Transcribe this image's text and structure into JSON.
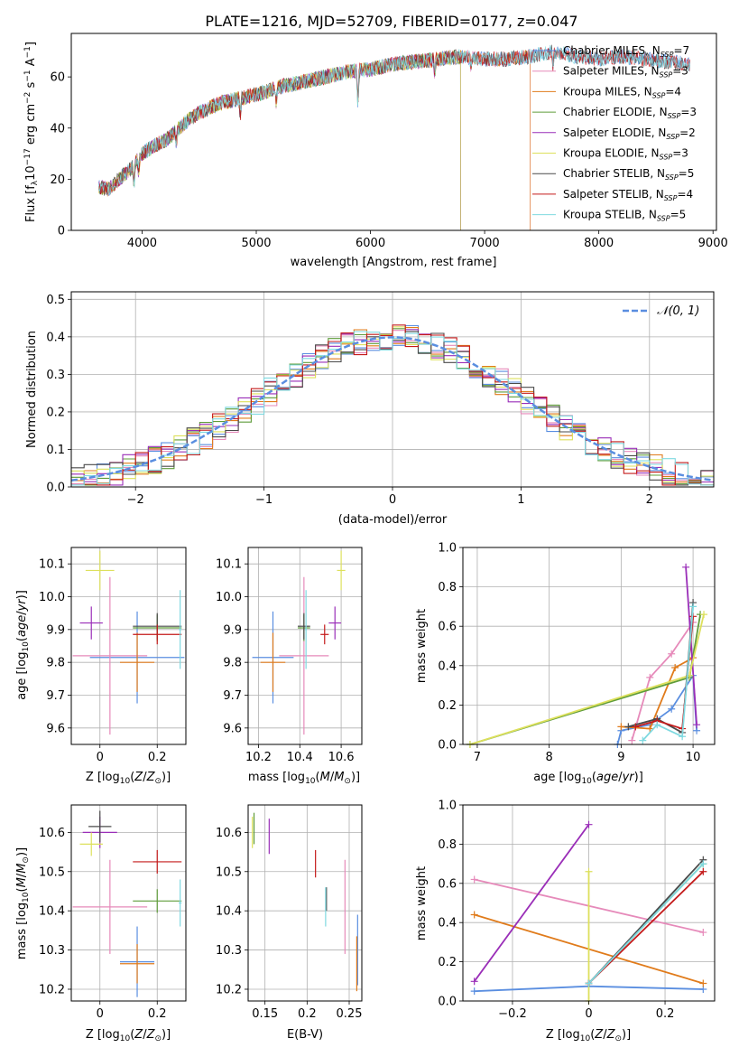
{
  "figure_title": "PLATE=1216, MJD=52709, FIBERID=0177, z=0.047",
  "series_colors": [
    "#5a8ee0",
    "#e68aba",
    "#e07b1b",
    "#5f9c3a",
    "#9a2eb8",
    "#dde05c",
    "#4a4a4a",
    "#c41a1a",
    "#7fd9e0"
  ],
  "chart_data": [
    {
      "type": "line",
      "title": "PLATE=1216, MJD=52709, FIBERID=0177, z=0.047",
      "xlabel": "wavelength [Angstrom, rest frame]",
      "ylabel": "Flux [fλ10⁻¹⁷ erg cm⁻² s⁻¹ A⁻¹]",
      "xlim": [
        3380,
        9030
      ],
      "ylim": [
        0,
        77
      ],
      "xticks": [
        4000,
        5000,
        6000,
        7000,
        8000,
        9000
      ],
      "yticks": [
        0,
        20,
        40,
        60
      ],
      "grid": false,
      "legend": "upper right",
      "legend_entries": [
        {
          "text": "Chabrier MILES, N",
          "sub": "SSP",
          "val": "=7"
        },
        {
          "text": "Salpeter MILES, N",
          "sub": "SSP",
          "val": "=3"
        },
        {
          "text": "Kroupa MILES, N",
          "sub": "SSP",
          "val": "=4"
        },
        {
          "text": "Chabrier ELODIE, N",
          "sub": "SSP",
          "val": "=3"
        },
        {
          "text": "Salpeter ELODIE, N",
          "sub": "SSP",
          "val": "=2"
        },
        {
          "text": "Kroupa ELODIE, N",
          "sub": "SSP",
          "val": "=3"
        },
        {
          "text": "Chabrier STELIB, N",
          "sub": "SSP",
          "val": "=5"
        },
        {
          "text": "Salpeter STELIB, N",
          "sub": "SSP",
          "val": "=4"
        },
        {
          "text": "Kroupa STELIB, N",
          "sub": "SSP",
          "val": "=5"
        }
      ],
      "continuum": [
        [
          3620,
          17
        ],
        [
          3700,
          16
        ],
        [
          3800,
          20
        ],
        [
          3900,
          24
        ],
        [
          4000,
          30
        ],
        [
          4100,
          33
        ],
        [
          4200,
          35
        ],
        [
          4300,
          39
        ],
        [
          4400,
          43
        ],
        [
          4500,
          46
        ],
        [
          4700,
          50
        ],
        [
          4900,
          52
        ],
        [
          5000,
          53
        ],
        [
          5200,
          56
        ],
        [
          5500,
          59
        ],
        [
          5800,
          62
        ],
        [
          6000,
          63
        ],
        [
          6200,
          65
        ],
        [
          6400,
          66
        ],
        [
          6600,
          67
        ],
        [
          6800,
          68
        ],
        [
          7000,
          67
        ],
        [
          7200,
          67
        ],
        [
          7400,
          68
        ],
        [
          7600,
          70
        ],
        [
          7800,
          68
        ],
        [
          8000,
          67
        ],
        [
          8200,
          68
        ],
        [
          8400,
          67
        ],
        [
          8600,
          66
        ],
        [
          8800,
          65
        ]
      ],
      "dips": [
        [
          3930,
          8
        ],
        [
          3970,
          6
        ],
        [
          4300,
          5
        ],
        [
          4860,
          7
        ],
        [
          5175,
          6
        ],
        [
          5890,
          14
        ],
        [
          6563,
          6
        ],
        [
          6880,
          4
        ],
        [
          7600,
          6
        ]
      ],
      "spectrum_ranges": [
        {
          "series": "Chabrier MILES",
          "x": [
            3620,
            8800
          ]
        },
        {
          "series": "Salpeter MILES",
          "x": [
            3620,
            7400
          ]
        },
        {
          "series": "Kroupa MILES",
          "x": [
            3620,
            7400
          ]
        },
        {
          "series": "Chabrier ELODIE",
          "x": [
            3620,
            6790
          ]
        },
        {
          "series": "Salpeter ELODIE",
          "x": [
            3620,
            6790
          ]
        },
        {
          "series": "Kroupa ELODIE",
          "x": [
            3620,
            6790
          ]
        },
        {
          "series": "Chabrier STELIB",
          "x": [
            3620,
            8800
          ]
        },
        {
          "series": "Salpeter STELIB",
          "x": [
            3620,
            8800
          ]
        },
        {
          "series": "Kroupa STELIB",
          "x": [
            3620,
            8800
          ]
        }
      ]
    },
    {
      "type": "histogram",
      "xlabel": "(data-model)/error",
      "ylabel": "Normed distribution",
      "xlim": [
        -2.5,
        2.5
      ],
      "ylim": [
        0,
        0.52
      ],
      "xticks": [
        -2,
        -1,
        0,
        1,
        2
      ],
      "yticks": [
        0.0,
        0.1,
        0.2,
        0.3,
        0.4,
        0.5
      ],
      "grid": true,
      "legend": "upper right",
      "legend_entry": "𝒩(0, 1)",
      "bin_width": 0.1,
      "curve": "N(0,1)"
    },
    {
      "type": "scatter",
      "xlabel": "Z [log10(Z/Z⊙)]",
      "ylabel": "age  [log10(age/yr)]",
      "xlim": [
        -0.1,
        0.3
      ],
      "ylim": [
        9.55,
        10.15
      ],
      "xticks": [
        0.0,
        0.2
      ],
      "yticks": [
        9.6,
        9.7,
        9.8,
        9.9,
        10.0,
        10.1
      ],
      "grid": true,
      "points": [
        {
          "x": 0.13,
          "y": 9.815,
          "xerr": 0.165,
          "yerr": 0.14
        },
        {
          "x": 0.035,
          "y": 9.82,
          "xerr": 0.13,
          "yerr": 0.24
        },
        {
          "x": 0.13,
          "y": 9.8,
          "xerr": 0.06,
          "yerr": 0.09
        },
        {
          "x": 0.2,
          "y": 9.905,
          "xerr": 0.085,
          "yerr": 0.04
        },
        {
          "x": -0.03,
          "y": 9.92,
          "xerr": 0.04,
          "yerr": 0.05
        },
        {
          "x": 0.0,
          "y": 10.08,
          "xerr": 0.05,
          "yerr": 0.06
        },
        {
          "x": 0.2,
          "y": 9.91,
          "xerr": 0.085,
          "yerr": 0.04
        },
        {
          "x": 0.2,
          "y": 9.885,
          "xerr": 0.085,
          "yerr": 0.03
        },
        {
          "x": 0.28,
          "y": 9.9,
          "xerr": 0.005,
          "yerr": 0.12
        }
      ]
    },
    {
      "type": "scatter",
      "xlabel": "mass [log10(M/M⊙)]",
      "xlim": [
        10.15,
        10.7
      ],
      "ylim": [
        9.55,
        10.15
      ],
      "xticks": [
        10.2,
        10.4,
        10.6
      ],
      "yticks": [
        9.6,
        9.7,
        9.8,
        9.9,
        10.0,
        10.1
      ],
      "grid": true,
      "points": [
        {
          "x": 10.27,
          "y": 9.815,
          "xerr": 0.1,
          "yerr": 0.14
        },
        {
          "x": 10.42,
          "y": 9.82,
          "xerr": 0.12,
          "yerr": 0.24
        },
        {
          "x": 10.27,
          "y": 9.8,
          "xerr": 0.06,
          "yerr": 0.09
        },
        {
          "x": 10.42,
          "y": 9.905,
          "xerr": 0.03,
          "yerr": 0.04
        },
        {
          "x": 10.57,
          "y": 9.92,
          "xerr": 0.03,
          "yerr": 0.05
        },
        {
          "x": 10.6,
          "y": 10.08,
          "xerr": 0.02,
          "yerr": 0.06
        },
        {
          "x": 10.42,
          "y": 9.91,
          "xerr": 0.03,
          "yerr": 0.04
        },
        {
          "x": 10.52,
          "y": 9.885,
          "xerr": 0.02,
          "yerr": 0.03
        },
        {
          "x": 10.43,
          "y": 9.9,
          "xerr": 0.005,
          "yerr": 0.12
        }
      ]
    },
    {
      "type": "line",
      "xlabel": "age  [log10(age/yr)]",
      "ylabel": "mass weight",
      "xlim": [
        6.8,
        10.3
      ],
      "ylim": [
        0,
        1.0
      ],
      "xticks": [
        7,
        8,
        9,
        10
      ],
      "yticks": [
        0.0,
        0.2,
        0.4,
        0.6,
        0.8,
        1.0
      ],
      "grid": true,
      "series": [
        {
          "x": [
            8.95,
            9.0,
            9.4,
            9.7,
            10.0,
            10.05
          ],
          "y": [
            0.0,
            0.07,
            0.1,
            0.18,
            0.35,
            0.07
          ]
        },
        {
          "x": [
            9.15,
            9.4,
            9.7,
            10.0
          ],
          "y": [
            0.02,
            0.34,
            0.46,
            0.62
          ]
        },
        {
          "x": [
            9.0,
            9.4,
            9.75,
            10.0
          ],
          "y": [
            0.09,
            0.08,
            0.39,
            0.44
          ]
        },
        {
          "x": [
            6.9,
            9.95,
            10.1
          ],
          "y": [
            0.0,
            0.34,
            0.66
          ]
        },
        {
          "x": [
            9.9,
            10.05
          ],
          "y": [
            0.9,
            0.1
          ]
        },
        {
          "x": [
            6.9,
            9.95,
            10.15
          ],
          "y": [
            0.0,
            0.35,
            0.66
          ]
        },
        {
          "x": [
            9.1,
            9.5,
            9.85,
            10.0
          ],
          "y": [
            0.09,
            0.13,
            0.06,
            0.72
          ]
        },
        {
          "x": [
            9.2,
            9.5,
            9.85,
            10.0
          ],
          "y": [
            0.09,
            0.12,
            0.08,
            0.65
          ]
        },
        {
          "x": [
            9.3,
            9.5,
            9.85,
            10.0
          ],
          "y": [
            0.02,
            0.1,
            0.04,
            0.7
          ]
        }
      ]
    },
    {
      "type": "scatter",
      "xlabel": "Z [log10(Z/Z⊙)]",
      "ylabel": "mass [log10(M/M⊙)]",
      "xlim": [
        -0.1,
        0.3
      ],
      "ylim": [
        10.17,
        10.67
      ],
      "xticks": [
        0.0,
        0.2
      ],
      "yticks": [
        10.2,
        10.3,
        10.4,
        10.5,
        10.6
      ],
      "grid": true,
      "points": [
        {
          "x": 0.13,
          "y": 10.27,
          "xerr": 0.06,
          "yerr": 0.09
        },
        {
          "x": 0.035,
          "y": 10.41,
          "xerr": 0.13,
          "yerr": 0.12
        },
        {
          "x": 0.13,
          "y": 10.265,
          "xerr": 0.06,
          "yerr": 0.05
        },
        {
          "x": 0.2,
          "y": 10.425,
          "xerr": 0.085,
          "yerr": 0.03
        },
        {
          "x": 0.0,
          "y": 10.6,
          "xerr": 0.06,
          "yerr": 0.04
        },
        {
          "x": -0.03,
          "y": 10.57,
          "xerr": 0.04,
          "yerr": 0.03
        },
        {
          "x": 0.0,
          "y": 10.615,
          "xerr": 0.04,
          "yerr": 0.04
        },
        {
          "x": 0.2,
          "y": 10.525,
          "xerr": 0.085,
          "yerr": 0.03
        },
        {
          "x": 0.28,
          "y": 10.42,
          "xerr": 0.005,
          "yerr": 0.06
        }
      ]
    },
    {
      "type": "scatter",
      "xlabel": "E(B-V)",
      "xlim": [
        0.13,
        0.265
      ],
      "ylim": [
        10.17,
        10.67
      ],
      "xticks": [
        0.15,
        0.2,
        0.25
      ],
      "yticks": [
        10.2,
        10.3,
        10.4,
        10.5,
        10.6
      ],
      "grid": true,
      "points": [
        {
          "x": 0.26,
          "y": 10.3,
          "yerr": 0.09
        },
        {
          "x": 0.245,
          "y": 10.41,
          "yerr": 0.12
        },
        {
          "x": 0.259,
          "y": 10.265,
          "yerr": 0.07
        },
        {
          "x": 0.137,
          "y": 10.61,
          "yerr": 0.04
        },
        {
          "x": 0.155,
          "y": 10.59,
          "yerr": 0.045
        },
        {
          "x": 0.135,
          "y": 10.6,
          "yerr": 0.04
        },
        {
          "x": 0.223,
          "y": 10.43,
          "yerr": 0.03
        },
        {
          "x": 0.21,
          "y": 10.52,
          "yerr": 0.035
        },
        {
          "x": 0.222,
          "y": 10.41,
          "yerr": 0.05
        }
      ]
    },
    {
      "type": "line",
      "xlabel": "Z [log10(Z/Z⊙)]",
      "ylabel": "mass weight",
      "xlim": [
        -0.33,
        0.33
      ],
      "ylim": [
        0,
        1.0
      ],
      "xticks": [
        -0.2,
        0.0,
        0.2
      ],
      "yticks": [
        0.0,
        0.2,
        0.4,
        0.6,
        0.8,
        1.0
      ],
      "grid": true,
      "series": [
        {
          "x": [
            -0.3,
            0.0,
            0.3
          ],
          "y": [
            0.05,
            0.075,
            0.06
          ]
        },
        {
          "x": [
            -0.3,
            0.3
          ],
          "y": [
            0.62,
            0.35
          ]
        },
        {
          "x": [
            -0.3,
            0.3
          ],
          "y": [
            0.44,
            0.09
          ]
        },
        {
          "x": [
            0.0,
            0.3
          ],
          "y": [
            0.09,
            0.7
          ]
        },
        {
          "x": [
            -0.3,
            0.0
          ],
          "y": [
            0.1,
            0.9
          ]
        },
        {
          "x": [
            0.0,
            0.0
          ],
          "y": [
            0.0,
            0.66
          ]
        },
        {
          "x": [
            0.0,
            0.3
          ],
          "y": [
            0.09,
            0.72
          ]
        },
        {
          "x": [
            0.0,
            0.3
          ],
          "y": [
            0.09,
            0.66
          ]
        },
        {
          "x": [
            0.0,
            0.3
          ],
          "y": [
            0.09,
            0.7
          ]
        }
      ]
    }
  ]
}
